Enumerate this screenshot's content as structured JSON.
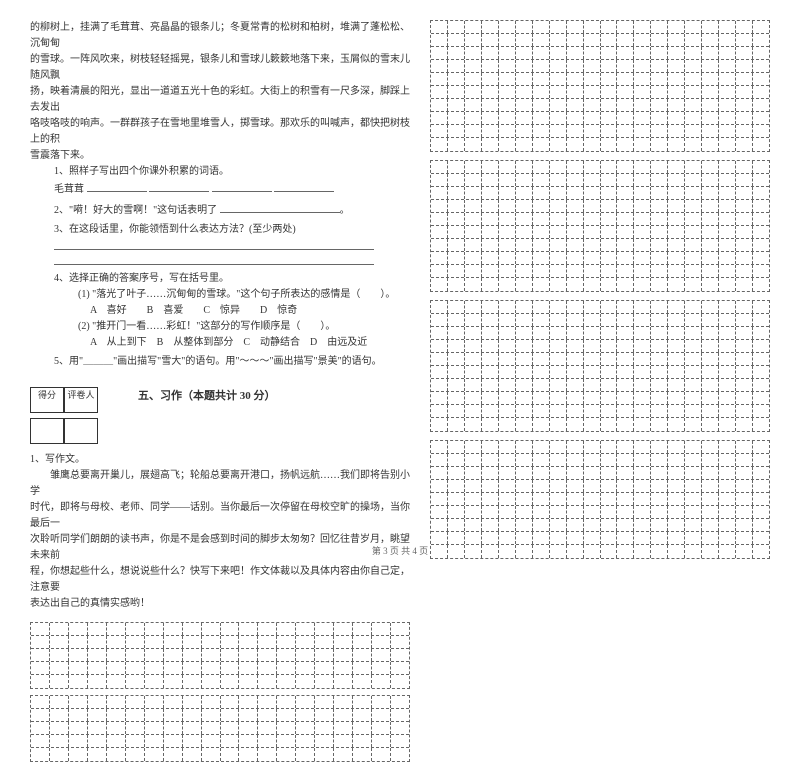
{
  "passage": {
    "lines": [
      "的柳树上，挂满了毛茸茸、亮晶晶的银条儿；冬夏常青的松树和柏树，堆满了蓬松松、沉甸甸",
      "的雪球。一阵风吹来，树枝轻轻摇晃，银条儿和雪球儿簌簌地落下来，玉屑似的雪末儿随风飘",
      "扬，映着清晨的阳光，显出一道道五光十色的彩虹。大街上的积雪有一尺多深，脚踩上去发出",
      "咯吱咯吱的响声。一群群孩子在雪地里堆雪人，掷雪球。那欢乐的叫喊声，都快把树枝上的积",
      "雪震落下来。"
    ]
  },
  "questions": {
    "q1": {
      "stem": "1、照样子写出四个你课外积累的词语。",
      "example": "毛茸茸"
    },
    "q2": {
      "stem": "2、\"嗬！好大的雪啊！\"这句话表明了"
    },
    "q3": {
      "stem": "3、在这段话里，你能领悟到什么表达方法？(至少两处)"
    },
    "q4": {
      "stem": "4、选择正确的答案序号，写在括号里。",
      "sub1": "(1) \"落光了叶子……沉甸甸的雪球。\"这个句子所表达的感情是（　　）。",
      "opts1": "A　喜好　　B　喜爱　　C　惊异　　D　惊奇",
      "sub2": "(2) \"推开门一看……彩虹！\"这部分的写作顺序是（　　）。",
      "opts2": "A　从上到下　B　从整体到部分　C　动静结合　D　由远及近"
    },
    "q5": {
      "stem": "5、用\"＿＿＿\"画出描写\"雪大\"的语句。用\"～～～\"画出描写\"景美\"的语句。"
    }
  },
  "section5": {
    "score_label1": "得分",
    "score_label2": "评卷人",
    "title": "五、习作（本题共计 30 分）"
  },
  "writing": {
    "stem": "1、写作文。",
    "body": [
      "　　雏鹰总要离开巢儿，展翅高飞；轮船总要离开港口，扬帆远航……我们即将告别小学",
      "时代，即将与母校、老师、同学——话别。当你最后一次停留在母校空旷的操场，当你最后一",
      "次聆听同学们朗朗的读书声，你是不是会感到时间的脚步太匆匆？回忆往昔岁月，眺望未来前",
      "程，你想起些什么，想说说些什么？快写下来吧！作文体裁以及具体内容由你自己定，注意要",
      "表达出自己的真情实感哟！"
    ]
  },
  "footer": "第 3 页 共 4 页",
  "grid": {
    "cols": 20,
    "small_rows": 5,
    "right_block_rows": [
      10,
      10,
      10,
      9
    ],
    "dash_color": "#666666",
    "bg": "#ffffff"
  }
}
